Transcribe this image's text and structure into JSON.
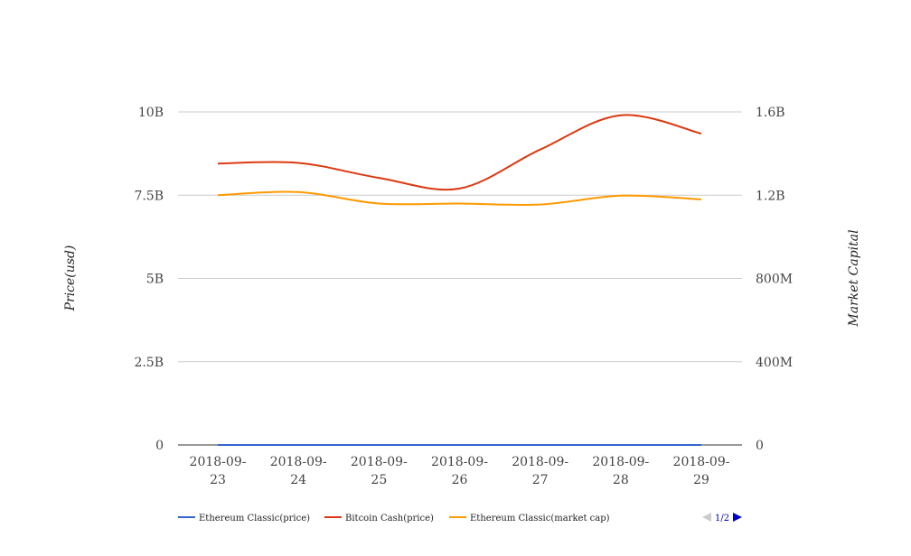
{
  "chart_data": {
    "type": "line",
    "categories": [
      "2018-09-23",
      "2018-09-24",
      "2018-09-25",
      "2018-09-26",
      "2018-09-27",
      "2018-09-28",
      "2018-09-29"
    ],
    "category_lines": [
      [
        "2018-09-",
        "23"
      ],
      [
        "2018-09-",
        "24"
      ],
      [
        "2018-09-",
        "25"
      ],
      [
        "2018-09-",
        "26"
      ],
      [
        "2018-09-",
        "27"
      ],
      [
        "2018-09-",
        "28"
      ],
      [
        "2018-09-",
        "29"
      ]
    ],
    "y_left": {
      "label": "Price(usd)",
      "ylim": [
        0,
        10000000000
      ],
      "ticks": [
        "0",
        "2.5B",
        "5B",
        "7.5B",
        "10B"
      ],
      "tick_values": [
        0,
        2500000000,
        5000000000,
        7500000000,
        10000000000
      ]
    },
    "y_right": {
      "label": "Market Capital",
      "ylim": [
        0,
        1600000000
      ],
      "ticks": [
        "0",
        "400M",
        "800M",
        "1.2B",
        "1.6B"
      ],
      "tick_values": [
        0,
        400000000,
        800000000,
        1200000000,
        1600000000
      ]
    },
    "grid": true,
    "legend_position": "bottom",
    "series": [
      {
        "name": "Ethereum Classic(price)",
        "axis": "left",
        "color": "#3366cc",
        "values": [
          11.5,
          11.2,
          10.9,
          10.8,
          11.0,
          11.4,
          11.1
        ]
      },
      {
        "name": "Bitcoin Cash(price)",
        "axis": "left",
        "color": "#dc3912",
        "values": [
          8450000000,
          8470000000,
          8020000000,
          7700000000,
          8870000000,
          9900000000,
          9350000000
        ]
      },
      {
        "name": "Ethereum Classic(market cap)",
        "axis": "right",
        "color": "#ff9900",
        "values": [
          1200000000,
          1215000000,
          1160000000,
          1160000000,
          1155000000,
          1198000000,
          1180000000
        ]
      },
      {
        "name": "",
        "axis": "left",
        "color": "#109618",
        "values": [
          2,
          2,
          2,
          2,
          2,
          2,
          2
        ]
      }
    ],
    "legend_entries": [
      "Ethereum Classic(price)",
      "Bitcoin Cash(price)",
      "Ethereum Classic(market cap)"
    ],
    "pager": {
      "text": "1/2",
      "prev_color": "#cccccc",
      "next_color": "#0000cc"
    }
  }
}
